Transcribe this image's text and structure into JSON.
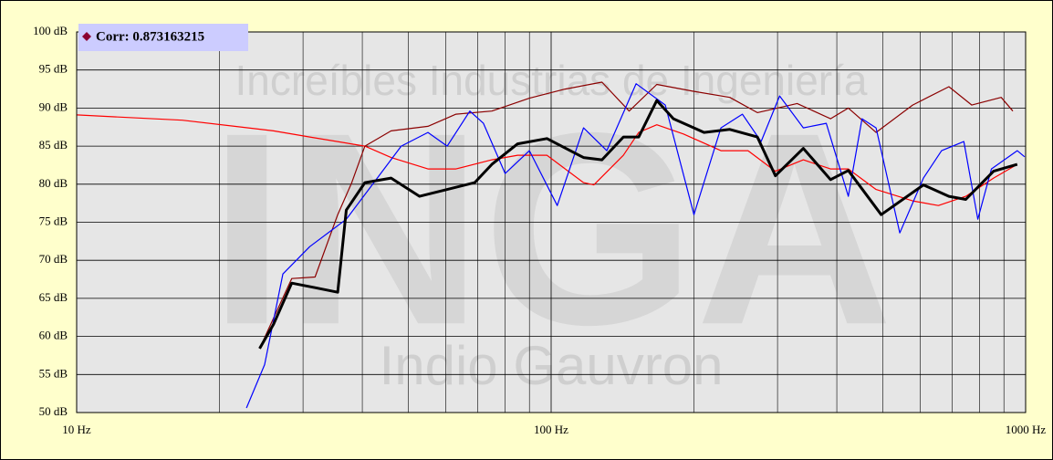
{
  "chart_data": {
    "type": "line",
    "annotation": "Corr: 0.873163215",
    "watermark": [
      "Increíbles Industrias de Ingeniería",
      "INGA",
      "Indio Gauvron"
    ],
    "xlog": true,
    "grid": true,
    "xlim": [
      10,
      1000
    ],
    "xticks": [
      {
        "value": 10,
        "label": "10 Hz"
      },
      {
        "value": 100,
        "label": "100 Hz"
      },
      {
        "value": 1000,
        "label": "1000 Hz"
      }
    ],
    "xminor": [
      20,
      30,
      40,
      50,
      60,
      70,
      80,
      90,
      200,
      300,
      400,
      500,
      600,
      700,
      800,
      900
    ],
    "ylim": [
      50,
      100
    ],
    "yticks": [
      {
        "value": 50,
        "label": "50 dB"
      },
      {
        "value": 55,
        "label": "55 dB"
      },
      {
        "value": 60,
        "label": "60 dB"
      },
      {
        "value": 65,
        "label": "65 dB"
      },
      {
        "value": 70,
        "label": "70 dB"
      },
      {
        "value": 75,
        "label": "75 dB"
      },
      {
        "value": 80,
        "label": "80 dB"
      },
      {
        "value": 85,
        "label": "85 dB"
      },
      {
        "value": 90,
        "label": "90 dB"
      },
      {
        "value": 95,
        "label": "95 dB"
      },
      {
        "value": 100,
        "label": "100 dB"
      }
    ],
    "series": [
      {
        "color": "#ff0000",
        "width": 1.2,
        "x": [
          10,
          16.7,
          26,
          31,
          40.5,
          46,
          55,
          63,
          75,
          85,
          98,
          117,
          123,
          142,
          153,
          167,
          190,
          228,
          260,
          297,
          340,
          388,
          423,
          484,
          578,
          655,
          748,
          856,
          960
        ],
        "values": [
          89.1,
          88.4,
          87,
          86.2,
          85,
          83.5,
          82,
          82,
          83.2,
          83.8,
          83.8,
          80.2,
          79.9,
          83.8,
          86.8,
          87.8,
          86.6,
          84.4,
          84.4,
          81.7,
          83.2,
          82,
          82,
          79.3,
          77.8,
          77.2,
          78.4,
          80.8,
          82.6
        ]
      },
      {
        "color": "#8b0000",
        "width": 1.2,
        "x": [
          24.3,
          28.4,
          31.8,
          35.5,
          38,
          40.5,
          46,
          55,
          63,
          75,
          90,
          107,
          128,
          146,
          167,
          200,
          238,
          272,
          330,
          388,
          423,
          484,
          578,
          689,
          770,
          888,
          940
        ],
        "values": [
          58.4,
          67.6,
          67.8,
          76,
          80.2,
          85,
          87,
          87.6,
          89.2,
          89.6,
          91.3,
          92.5,
          93.4,
          89.6,
          93.1,
          92.2,
          91.4,
          89.4,
          90.6,
          88.6,
          90,
          86.8,
          90.4,
          92.8,
          90.4,
          91.4,
          89.6
        ]
      },
      {
        "color": "#0000ff",
        "width": 1.2,
        "x": [
          22.8,
          24.9,
          27.2,
          31,
          37,
          42.3,
          48.3,
          55,
          60.4,
          67.4,
          72,
          80,
          90,
          103,
          117,
          131,
          151,
          174,
          200,
          228,
          253,
          277,
          303,
          340,
          380,
          423,
          452,
          484,
          543,
          609,
          665,
          741,
          793,
          847,
          960,
          995
        ],
        "values": [
          50.6,
          56.3,
          68.2,
          71.8,
          75.4,
          80.2,
          85,
          86.8,
          85,
          89.6,
          88,
          81.4,
          84.4,
          77.2,
          87.4,
          84.4,
          93.2,
          90.4,
          76,
          87.4,
          89.2,
          85.6,
          91.6,
          87.4,
          88,
          78.4,
          88.6,
          87.4,
          73.6,
          80.8,
          84.4,
          85.6,
          75.4,
          82,
          84.4,
          83.6
        ]
      },
      {
        "color": "#000000",
        "width": 3,
        "x": [
          24.3,
          26,
          28.4,
          31.8,
          35.5,
          37,
          40.5,
          46,
          52.8,
          60.4,
          69,
          75,
          85,
          98,
          117,
          128,
          142,
          153,
          167,
          181,
          210,
          238,
          272,
          297,
          340,
          388,
          423,
          496,
          609,
          689,
          748,
          856,
          960
        ],
        "values": [
          58.4,
          61.6,
          67,
          66.4,
          65.8,
          76.6,
          80.2,
          80.8,
          78.4,
          79.3,
          80.2,
          82.6,
          85.3,
          86,
          83.5,
          83.2,
          86.2,
          86.2,
          91,
          88.6,
          86.8,
          87.2,
          86.2,
          81.1,
          84.7,
          80.6,
          81.8,
          76,
          79.9,
          78.4,
          78,
          81.7,
          82.6
        ]
      }
    ]
  }
}
